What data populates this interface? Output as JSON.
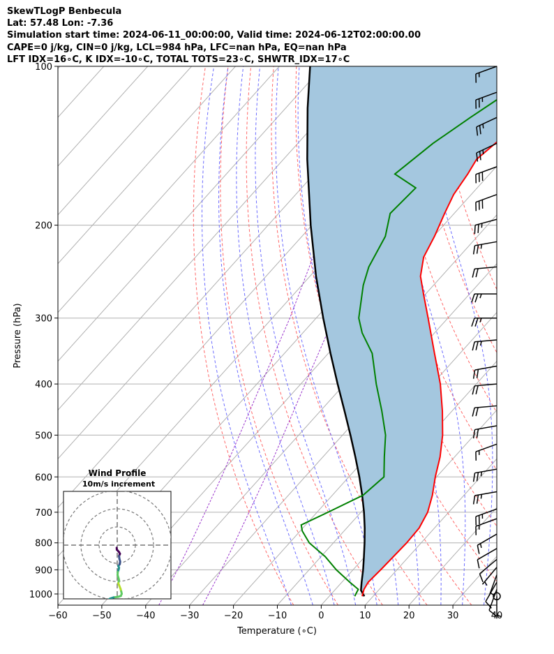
{
  "header": {
    "line1": "SkewTLogP Benbecula",
    "line2": "Lat: 57.48   Lon: -7.36",
    "line3": "Simulation start time: 2024-06-11_00:00:00, Valid time: 2024-06-12T02:00:00.00",
    "line4": "CAPE=0 j/kg, CIN=0 j/kg, LCL=984 hPa, LFC=nan hPa, EQ=nan hPa",
    "line5": "LFT IDX=16∘C, K IDX=-10∘C, TOTAL TOTS=23∘C, SHWTR_IDX=17∘C"
  },
  "colors": {
    "temperature": "#ff0000",
    "dewpoint": "#008000",
    "parcel": "#000000",
    "shading": "#a4c7df",
    "dry_adiabat": "#ff6666",
    "moist_adiabat": "#6b6bff",
    "mixing_ratio": "#9932cc",
    "isotherm": "#b0b0b0"
  },
  "chart_data": {
    "type": "skew-t",
    "xlabel": "Temperature (∘C)",
    "ylabel": "Pressure (hPa)",
    "xlim": [
      -60,
      40
    ],
    "ylim": [
      1050,
      100
    ],
    "x_ticks": [
      -60,
      -50,
      -40,
      -30,
      -20,
      -10,
      0,
      10,
      20,
      30,
      40
    ],
    "y_ticks": [
      1000,
      900,
      800,
      700,
      600,
      500,
      400,
      300,
      200,
      100
    ],
    "temperature": [
      {
        "p": 1010,
        "t": 7.5
      },
      {
        "p": 980,
        "t": 6.5
      },
      {
        "p": 950,
        "t": 6.0
      },
      {
        "p": 900,
        "t": 6.3
      },
      {
        "p": 850,
        "t": 6.5
      },
      {
        "p": 800,
        "t": 6.7
      },
      {
        "p": 750,
        "t": 6.5
      },
      {
        "p": 700,
        "t": 5.2
      },
      {
        "p": 650,
        "t": 2.8
      },
      {
        "p": 600,
        "t": -0.3
      },
      {
        "p": 550,
        "t": -3.3
      },
      {
        "p": 500,
        "t": -7.2
      },
      {
        "p": 450,
        "t": -12.2
      },
      {
        "p": 400,
        "t": -18.2
      },
      {
        "p": 350,
        "t": -25.8
      },
      {
        "p": 300,
        "t": -34.5
      },
      {
        "p": 270,
        "t": -40.5
      },
      {
        "p": 250,
        "t": -44.8
      },
      {
        "p": 230,
        "t": -48.0
      },
      {
        "p": 210,
        "t": -49.8
      },
      {
        "p": 190,
        "t": -52.2
      },
      {
        "p": 175,
        "t": -54.0
      },
      {
        "p": 160,
        "t": -55.0
      },
      {
        "p": 150,
        "t": -56.0
      },
      {
        "p": 140,
        "t": -55.0
      },
      {
        "p": 125,
        "t": -54.0
      },
      {
        "p": 112,
        "t": -53.0
      },
      {
        "p": 100,
        "t": -52.0
      }
    ],
    "dewpoint": [
      {
        "p": 1010,
        "t": 5.8
      },
      {
        "p": 980,
        "t": 5.2
      },
      {
        "p": 950,
        "t": 1.8
      },
      {
        "p": 900,
        "t": -3.8
      },
      {
        "p": 850,
        "t": -9.0
      },
      {
        "p": 800,
        "t": -15.5
      },
      {
        "p": 760,
        "t": -19.5
      },
      {
        "p": 740,
        "t": -21.0
      },
      {
        "p": 700,
        "t": -17.5
      },
      {
        "p": 650,
        "t": -13.0
      },
      {
        "p": 600,
        "t": -12.0
      },
      {
        "p": 550,
        "t": -16.0
      },
      {
        "p": 500,
        "t": -20.2
      },
      {
        "p": 450,
        "t": -26.0
      },
      {
        "p": 400,
        "t": -32.8
      },
      {
        "p": 350,
        "t": -40.0
      },
      {
        "p": 320,
        "t": -46.5
      },
      {
        "p": 300,
        "t": -50.3
      },
      {
        "p": 260,
        "t": -56.0
      },
      {
        "p": 240,
        "t": -58.5
      },
      {
        "p": 210,
        "t": -61.0
      },
      {
        "p": 190,
        "t": -64.6
      },
      {
        "p": 170,
        "t": -64.0
      },
      {
        "p": 160,
        "t": -71.6
      },
      {
        "p": 140,
        "t": -69.2
      },
      {
        "p": 125,
        "t": -66.0
      },
      {
        "p": 110,
        "t": -62.0
      },
      {
        "p": 100,
        "t": -60.0
      }
    ],
    "parcel": [
      {
        "p": 1010,
        "t": 8.0
      },
      {
        "p": 984,
        "t": 6.0
      },
      {
        "p": 950,
        "t": 4.5
      },
      {
        "p": 900,
        "t": 2.3
      },
      {
        "p": 850,
        "t": -0.2
      },
      {
        "p": 800,
        "t": -2.9
      },
      {
        "p": 750,
        "t": -5.9
      },
      {
        "p": 700,
        "t": -9.3
      },
      {
        "p": 650,
        "t": -13.2
      },
      {
        "p": 600,
        "t": -17.6
      },
      {
        "p": 550,
        "t": -22.6
      },
      {
        "p": 500,
        "t": -28.2
      },
      {
        "p": 450,
        "t": -34.5
      },
      {
        "p": 400,
        "t": -41.6
      },
      {
        "p": 350,
        "t": -49.5
      },
      {
        "p": 300,
        "t": -58.4
      },
      {
        "p": 250,
        "t": -68.6
      },
      {
        "p": 200,
        "t": -80.3
      },
      {
        "p": 150,
        "t": -94.6
      },
      {
        "p": 120,
        "t": -105.0
      },
      {
        "p": 100,
        "t": -113.0
      }
    ],
    "dry_adiabats_theta_c": [
      -10,
      0,
      10,
      20,
      30,
      40,
      50,
      60,
      70,
      80,
      90
    ],
    "moist_adiabats_t1000_c": [
      -10,
      -5,
      0,
      5,
      10,
      15,
      20,
      25,
      30,
      35
    ],
    "mixing_ratio_lines": [
      {
        "p": 1050,
        "t": -27.0
      },
      {
        "p": 900,
        "t": -30.0
      },
      {
        "p": 800,
        "t": -32.5
      },
      {
        "p": 700,
        "t": -35.5
      },
      {
        "p": 600,
        "t": -39.0
      },
      {
        "p": 500,
        "t": -43.5
      },
      {
        "p": 400,
        "t": -49.0
      },
      {
        "p": 300,
        "t": -56.0
      },
      {
        "p": 200,
        "t": -67.0
      },
      {
        "p": 100,
        "t": -85.0
      }
    ],
    "mixing_ratio_lines_2": [
      {
        "p": 1050,
        "t": -37.0
      },
      {
        "p": 900,
        "t": -40.0
      },
      {
        "p": 800,
        "t": -42.5
      },
      {
        "p": 700,
        "t": -45.5
      },
      {
        "p": 600,
        "t": -49.0
      },
      {
        "p": 500,
        "t": -53.5
      },
      {
        "p": 400,
        "t": -59.0
      },
      {
        "p": 300,
        "t": -66.0
      },
      {
        "p": 200,
        "t": -77.0
      },
      {
        "p": 100,
        "t": -95.0
      }
    ],
    "wind_barbs": [
      {
        "p": 1010,
        "speed_kt": 5,
        "dir_deg": 180
      },
      {
        "p": 980,
        "speed_kt": 8,
        "dir_deg": 200
      },
      {
        "p": 950,
        "speed_kt": 8,
        "dir_deg": 210
      },
      {
        "p": 920,
        "speed_kt": 5,
        "dir_deg": 200
      },
      {
        "p": 890,
        "speed_kt": 5,
        "dir_deg": 220
      },
      {
        "p": 860,
        "speed_kt": 10,
        "dir_deg": 230
      },
      {
        "p": 820,
        "speed_kt": 10,
        "dir_deg": 240
      },
      {
        "p": 770,
        "speed_kt": 15,
        "dir_deg": 240
      },
      {
        "p": 720,
        "speed_kt": 15,
        "dir_deg": 250
      },
      {
        "p": 690,
        "speed_kt": 25,
        "dir_deg": 250
      },
      {
        "p": 640,
        "speed_kt": 25,
        "dir_deg": 260
      },
      {
        "p": 580,
        "speed_kt": 25,
        "dir_deg": 260
      },
      {
        "p": 520,
        "speed_kt": 15,
        "dir_deg": 250
      },
      {
        "p": 480,
        "speed_kt": 20,
        "dir_deg": 260
      },
      {
        "p": 440,
        "speed_kt": 20,
        "dir_deg": 265
      },
      {
        "p": 400,
        "speed_kt": 20,
        "dir_deg": 265
      },
      {
        "p": 370,
        "speed_kt": 20,
        "dir_deg": 260
      },
      {
        "p": 330,
        "speed_kt": 25,
        "dir_deg": 265
      },
      {
        "p": 300,
        "speed_kt": 25,
        "dir_deg": 270
      },
      {
        "p": 270,
        "speed_kt": 25,
        "dir_deg": 270
      },
      {
        "p": 240,
        "speed_kt": 20,
        "dir_deg": 265
      },
      {
        "p": 215,
        "speed_kt": 25,
        "dir_deg": 260
      },
      {
        "p": 195,
        "speed_kt": 25,
        "dir_deg": 255
      },
      {
        "p": 175,
        "speed_kt": 30,
        "dir_deg": 250
      },
      {
        "p": 155,
        "speed_kt": 30,
        "dir_deg": 250
      },
      {
        "p": 140,
        "speed_kt": 25,
        "dir_deg": 245
      },
      {
        "p": 125,
        "speed_kt": 25,
        "dir_deg": 245
      },
      {
        "p": 112,
        "speed_kt": 25,
        "dir_deg": 250
      },
      {
        "p": 100,
        "speed_kt": 15,
        "dir_deg": 250
      }
    ],
    "inset": {
      "title": "Wind Profile",
      "subtitle": "10m/s increment",
      "rings_ms": [
        10,
        20,
        30
      ],
      "hodograph": [
        {
          "u": -0.3,
          "v": -1.5
        },
        {
          "u": -0.2,
          "v": -2.5
        },
        {
          "u": 1.0,
          "v": -3.8
        },
        {
          "u": 1.5,
          "v": -4.8
        },
        {
          "u": 1.0,
          "v": -6.0
        },
        {
          "u": 1.2,
          "v": -7.5
        },
        {
          "u": 1.6,
          "v": -9.0
        },
        {
          "u": 1.4,
          "v": -10.5
        },
        {
          "u": 0.6,
          "v": -11.5
        },
        {
          "u": 1.0,
          "v": -12.5
        },
        {
          "u": 0.8,
          "v": -13.5
        },
        {
          "u": 0.3,
          "v": -14.8
        },
        {
          "u": 0.2,
          "v": -16.5
        },
        {
          "u": 0.8,
          "v": -18.5
        },
        {
          "u": 1.0,
          "v": -19.5
        },
        {
          "u": 0.6,
          "v": -21.0
        },
        {
          "u": 1.2,
          "v": -22.5
        },
        {
          "u": 1.8,
          "v": -24.0
        },
        {
          "u": 2.2,
          "v": -25.5
        },
        {
          "u": 2.5,
          "v": -26.8
        },
        {
          "u": 2.0,
          "v": -28.0
        },
        {
          "u": 0.5,
          "v": -28.5
        },
        {
          "u": -2.0,
          "v": -28.8
        },
        {
          "u": -4.0,
          "v": -29.5
        },
        {
          "u": -5.5,
          "v": -30.5
        },
        {
          "u": -6.0,
          "v": -31.0
        }
      ]
    }
  }
}
